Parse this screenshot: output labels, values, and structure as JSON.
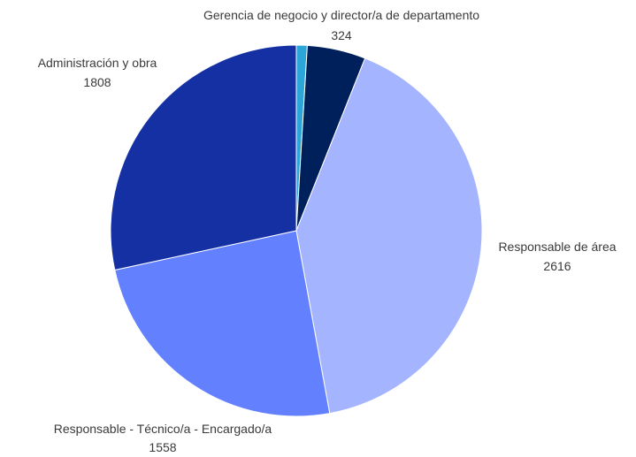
{
  "chart_data": {
    "type": "pie",
    "title": "",
    "start_angle_deg": 0,
    "direction": "clockwise",
    "slices": [
      {
        "label": "",
        "value": 60,
        "color": "#2CA6D9"
      },
      {
        "label": "Gerencia de negocio y director/a de departamento",
        "value": 324,
        "color": "#00205B"
      },
      {
        "label": "Responsable de área",
        "value": 2616,
        "color": "#A4B4FF"
      },
      {
        "label": "Responsable - Técnico/a - Encargado/a",
        "value": 1558,
        "color": "#6381FF"
      },
      {
        "label": "Administración y obra",
        "value": 1808,
        "color": "#1430A3"
      }
    ]
  }
}
